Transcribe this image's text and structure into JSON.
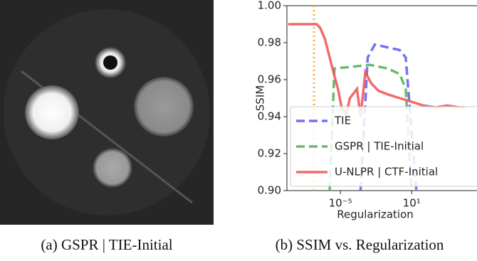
{
  "chart_data": {
    "type": "line",
    "xlabel": "Regularization",
    "ylabel": "SSIM",
    "xscale": "log",
    "xlim": [
      3.16e-10,
      3160000.0
    ],
    "xticks": [
      {
        "value": 1e-05,
        "label": "10⁻⁵"
      },
      {
        "value": 10,
        "label": "10¹"
      }
    ],
    "ylim": [
      0.9,
      1.0
    ],
    "yticks": [
      {
        "value": 0.9,
        "label": "0.90"
      },
      0.92,
      0.94,
      0.96,
      0.98,
      {
        "value": 1.0,
        "label": "1.00"
      }
    ],
    "legend": "lower right",
    "vline": {
      "x": 6e-08,
      "color": "#f5b041"
    },
    "series": [
      {
        "name": "TIE",
        "color": "#5a5af0",
        "dash": true,
        "x": [
          0.0005,
          0.002,
          0.0079,
          1,
          3.16,
          25
        ],
        "values": [
          0.9,
          0.972,
          0.979,
          0.976,
          0.972,
          0.9
        ]
      },
      {
        "name": "GSPR | TIE-Initial",
        "color": "#4caf50",
        "dash": true,
        "x": [
          1.26e-06,
          3.16e-06,
          0.0001,
          0.00316,
          0.1,
          1,
          3.16,
          10
        ],
        "values": [
          0.9,
          0.966,
          0.967,
          0.968,
          0.966,
          0.963,
          0.955,
          0.9
        ]
      },
      {
        "name": "U-NLPR | CTF-Initial",
        "color": "#f05050",
        "dash": false,
        "x": [
          3.98e-10,
          1e-07,
          2e-07,
          5e-07,
          1.26e-06,
          3.16e-06,
          6.3e-06,
          1.26e-05,
          3.16e-05,
          6.3e-05,
          0.00025,
          0.0005,
          0.00126,
          0.00398,
          0.0158,
          0.1,
          1,
          10,
          100,
          1000,
          10000.0,
          100000.0,
          316000.0
        ],
        "values": [
          0.99,
          0.99,
          0.988,
          0.982,
          0.972,
          0.962,
          0.955,
          0.945,
          0.941,
          0.95,
          0.955,
          0.94,
          0.964,
          0.958,
          0.954,
          0.952,
          0.95,
          0.948,
          0.946,
          0.945,
          0.946,
          0.945,
          0.945
        ]
      }
    ]
  },
  "captions": [
    "(a) GSPR | TIE-Initial",
    "(b) SSIM vs. Regularization"
  ]
}
